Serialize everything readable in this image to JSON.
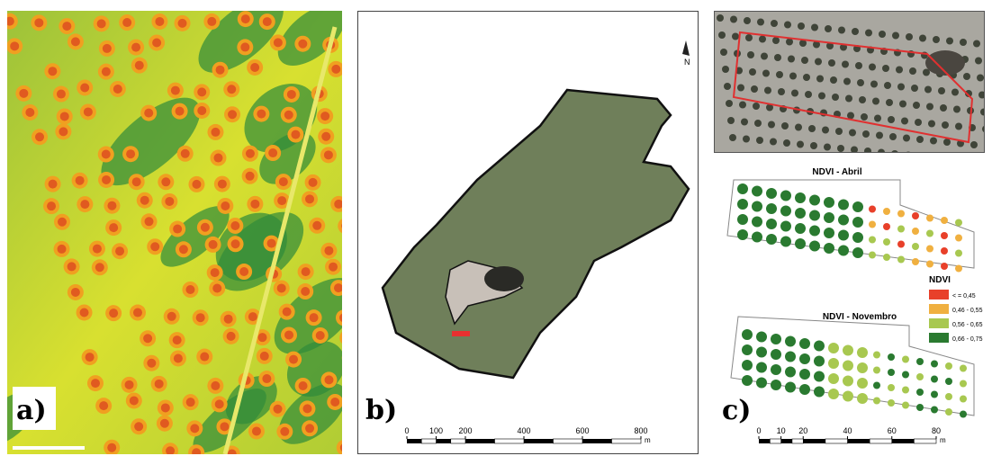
{
  "panels": [
    {
      "label": "a)"
    },
    {
      "label": "b)",
      "north": "N",
      "scale_bar": {
        "ticks": [
          0,
          100,
          200,
          400,
          600,
          800
        ],
        "unit": "m"
      }
    },
    {
      "label": "c)",
      "maps": [
        {
          "title": "NDVI - Abril"
        },
        {
          "title": "NDVI - Novembro"
        }
      ],
      "legend": {
        "title": "NDVI",
        "items": [
          {
            "label": "< = 0,45",
            "color": "#e8402a"
          },
          {
            "label": "0,46 - 0,55",
            "color": "#f0b040"
          },
          {
            "label": "0,56 - 0,65",
            "color": "#a8c850"
          },
          {
            "label": "0,66 - 0,75",
            "color": "#2a7a30"
          }
        ]
      },
      "scale_bar": {
        "ticks": [
          0,
          10,
          20,
          40,
          60,
          80
        ],
        "unit": "m"
      }
    }
  ]
}
